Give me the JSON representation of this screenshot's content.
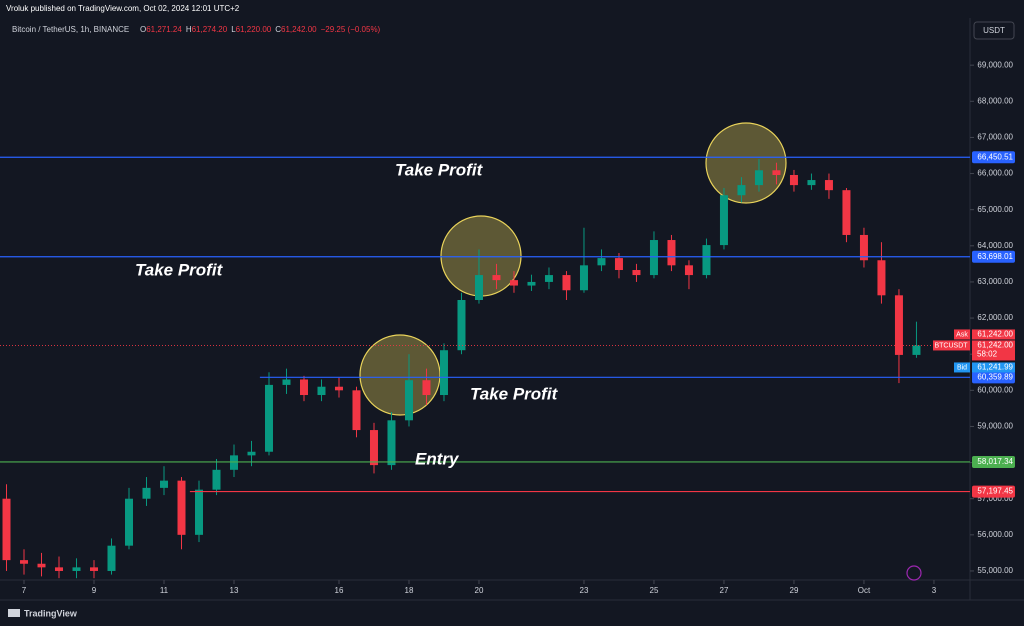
{
  "header": "Vroluk published on TradingView.com, Oct 02, 2024 12:01 UTC+2",
  "footer": "TradingView",
  "chart_data": {
    "type": "candlestick",
    "legend": {
      "symbol": "Bitcoin / TetherUS, 1h, BINANCE",
      "ohlc": [
        {
          "label": "O",
          "value": "61,271.24"
        },
        {
          "label": "H",
          "value": "61,274.20"
        },
        {
          "label": "L",
          "value": "61,220.00"
        },
        {
          "label": "C",
          "value": "61,242.00"
        }
      ],
      "change": "−29.25 (−0.05%)"
    },
    "currency": "USDT",
    "x": [
      -0.5,
      0,
      0.5,
      1,
      1.5,
      2,
      2.5,
      3,
      3.5,
      4,
      4.5,
      5,
      5.5,
      6,
      6.5,
      7,
      7.5,
      8,
      8.5,
      9,
      9.5,
      10,
      10.5,
      11,
      11.5,
      12,
      12.5,
      13,
      13.5,
      14,
      14.5,
      15,
      15.5,
      16,
      16.5,
      17,
      17.5,
      18,
      18.5,
      19,
      19.5,
      20,
      20.5,
      21,
      21.5,
      22,
      22.5,
      23,
      23.5,
      24,
      24.5,
      25,
      25.5
    ],
    "candles": [
      [
        57000,
        57400,
        55000,
        55300
      ],
      [
        55300,
        55600,
        54900,
        55200
      ],
      [
        55200,
        55500,
        54850,
        55100
      ],
      [
        55100,
        55400,
        54800,
        55000
      ],
      [
        55000,
        55350,
        54800,
        55100
      ],
      [
        55100,
        55300,
        54800,
        55000
      ],
      [
        55000,
        55900,
        54900,
        55700
      ],
      [
        55700,
        57300,
        55600,
        57000
      ],
      [
        57000,
        57600,
        56800,
        57300
      ],
      [
        57300,
        57900,
        57100,
        57500
      ],
      [
        57500,
        57600,
        55600,
        56000
      ],
      [
        56000,
        57500,
        55800,
        57250
      ],
      [
        57250,
        58100,
        57100,
        57800
      ],
      [
        57800,
        58500,
        57600,
        58200
      ],
      [
        58200,
        58600,
        57900,
        58300
      ],
      [
        58300,
        60500,
        58200,
        60150
      ],
      [
        60150,
        60600,
        59900,
        60300
      ],
      [
        60300,
        60400,
        59700,
        59870
      ],
      [
        59870,
        60300,
        59700,
        60100
      ],
      [
        60100,
        60350,
        59800,
        60000
      ],
      [
        60000,
        60100,
        58700,
        58900
      ],
      [
        58900,
        59100,
        57700,
        57930
      ],
      [
        57930,
        59400,
        57800,
        59170
      ],
      [
        59170,
        61000,
        59000,
        60280
      ],
      [
        60280,
        60600,
        59600,
        59870
      ],
      [
        59870,
        61300,
        59700,
        61110
      ],
      [
        61110,
        62700,
        61000,
        62500
      ],
      [
        62500,
        63900,
        62400,
        63190
      ],
      [
        63190,
        63500,
        62800,
        63050
      ],
      [
        63050,
        63300,
        62700,
        62900
      ],
      [
        62900,
        63200,
        62750,
        63000
      ],
      [
        63000,
        63400,
        62800,
        63190
      ],
      [
        63190,
        63300,
        62500,
        62770
      ],
      [
        62770,
        64500,
        62700,
        63460
      ],
      [
        63460,
        63900,
        63300,
        63660
      ],
      [
        63660,
        63800,
        63100,
        63330
      ],
      [
        63330,
        63500,
        63000,
        63190
      ],
      [
        63190,
        64400,
        63100,
        64160
      ],
      [
        64160,
        64300,
        63300,
        63460
      ],
      [
        63460,
        63600,
        62800,
        63190
      ],
      [
        63190,
        64200,
        63100,
        64020
      ],
      [
        64020,
        65600,
        63900,
        65400
      ],
      [
        65400,
        65900,
        65200,
        65680
      ],
      [
        65680,
        66400,
        65500,
        66090
      ],
      [
        66090,
        66300,
        65700,
        65960
      ],
      [
        65960,
        66100,
        65500,
        65680
      ],
      [
        65680,
        66000,
        65550,
        65820
      ],
      [
        65820,
        66000,
        65300,
        65540
      ],
      [
        65540,
        65600,
        64100,
        64300
      ],
      [
        64300,
        64500,
        63400,
        63600
      ],
      [
        63600,
        64100,
        62400,
        62630
      ],
      [
        62630,
        62800,
        60200,
        60980
      ],
      [
        60980,
        61900,
        60900,
        61242
      ]
    ],
    "up_color": "#089981",
    "down_color": "#f23645",
    "xlim": [
      -0.686,
      27.03
    ],
    "xticks": [
      {
        "value": 0,
        "label": "7"
      },
      {
        "value": 2,
        "label": "9"
      },
      {
        "value": 4,
        "label": "11"
      },
      {
        "value": 6,
        "label": "13"
      },
      {
        "value": 9,
        "label": "16"
      },
      {
        "value": 11,
        "label": "18"
      },
      {
        "value": 13,
        "label": "20"
      },
      {
        "value": 16,
        "label": "23"
      },
      {
        "value": 18,
        "label": "25"
      },
      {
        "value": 20,
        "label": "27"
      },
      {
        "value": 22,
        "label": "29"
      },
      {
        "value": 24,
        "label": "Oct"
      },
      {
        "value": 26,
        "label": "3"
      }
    ],
    "ylim": [
      54750,
      70250
    ],
    "yticks": [
      {
        "value": 55000,
        "label": "55,000.00"
      },
      {
        "value": 56000,
        "label": "56,000.00"
      },
      {
        "value": 57000,
        "label": "57,000.00"
      },
      {
        "value": 58000,
        "label": "58,000.00"
      },
      {
        "value": 59000,
        "label": "59,000.00"
      },
      {
        "value": 60000,
        "label": "60,000.00"
      },
      {
        "value": 61000,
        "label": "61,000.00"
      },
      {
        "value": 62000,
        "label": "62,000.00"
      },
      {
        "value": 63000,
        "label": "63,000.00"
      },
      {
        "value": 64000,
        "label": "64,000.00"
      },
      {
        "value": 65000,
        "label": "65,000.00"
      },
      {
        "value": 66000,
        "label": "66,000.00"
      },
      {
        "value": 67000,
        "label": "67,000.00"
      },
      {
        "value": 68000,
        "label": "68,000.00"
      },
      {
        "value": 69000,
        "label": "69,000.00"
      }
    ],
    "levels": [
      {
        "value": 66450.51,
        "label": "66,450.51",
        "color": "#2962ff",
        "start": -0.686
      },
      {
        "value": 63698.01,
        "label": "63,698.01",
        "color": "#2962ff",
        "start": -0.686
      },
      {
        "value": 60359.89,
        "label": "60,359.89",
        "color": "#2962ff",
        "start": 6.74
      },
      {
        "value": 58017.34,
        "label": "58,017.34",
        "color": "#4caf50",
        "start": -0.686
      },
      {
        "value": 57197.45,
        "label": "57,197.45",
        "color": "#f23645",
        "start": 4.74
      }
    ],
    "last": {
      "value": 61242.0,
      "symbol": "BTCUSDT",
      "label": "61,242.00",
      "countdown": "58:02"
    },
    "ask": {
      "name": "Ask",
      "label": "61,242.00"
    },
    "bid": {
      "name": "Bid",
      "label": "61,241.99"
    },
    "annotations": [
      "Take Profit",
      "Take Profit",
      "Take Profit",
      "Entry"
    ]
  }
}
